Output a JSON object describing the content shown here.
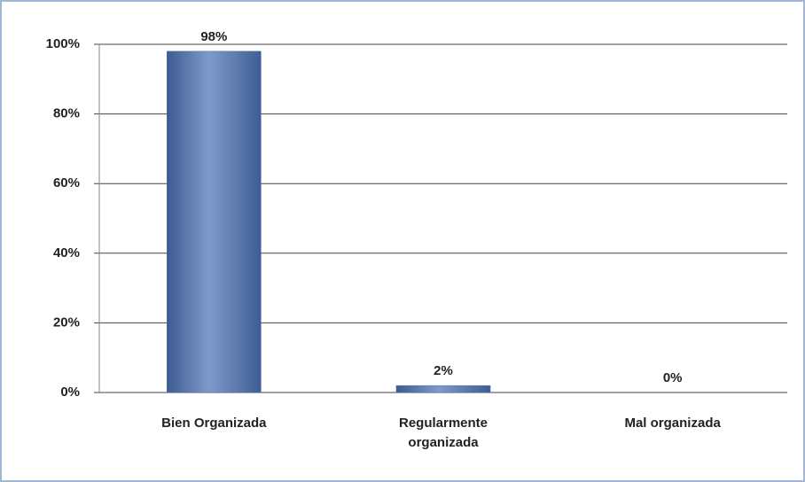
{
  "chart_data": {
    "type": "bar",
    "categories": [
      "Bien Organizada",
      "Regularmente organizada",
      "Mal organizada"
    ],
    "values": [
      98,
      2,
      0
    ],
    "value_labels": [
      "98%",
      "2%",
      "0%"
    ],
    "color": "#4f6fa8",
    "ylim": [
      0,
      100
    ],
    "yticks": [
      {
        "value": 0,
        "label": "0%"
      },
      {
        "value": 20,
        "label": "20%"
      },
      {
        "value": 40,
        "label": "40%"
      },
      {
        "value": 60,
        "label": "60%"
      },
      {
        "value": 80,
        "label": "80%"
      },
      {
        "value": 100,
        "label": "100%"
      }
    ],
    "grid": true
  }
}
